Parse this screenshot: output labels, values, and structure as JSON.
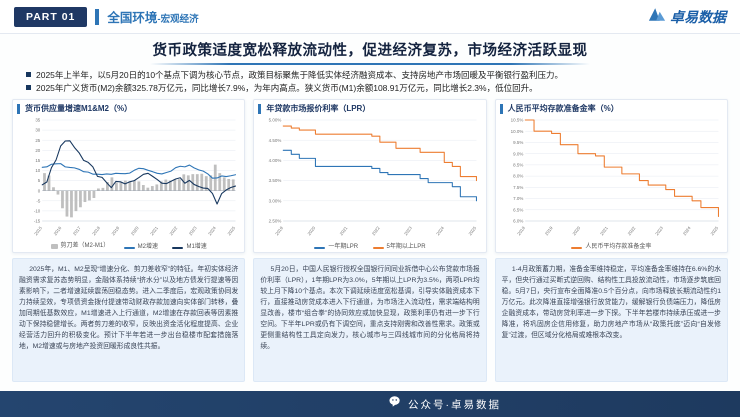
{
  "header": {
    "part_label": "PART 01",
    "section_title": "全国环境",
    "section_subtitle": "-宏观经济",
    "logo_text": "卓易数据"
  },
  "title": "货币政策适度宽松释放流动性，促进经济复苏，市场经济活跃显现",
  "bullets": [
    "2025年上半年，以5月20日的10个基点下调为核心节点，政策目标聚焦于降低实体经济融资成本、支持房地产市场回暖及平衡银行盈利压力。",
    "2025年广义货币(M2)余额325.78万亿元，同比增长7.9%，为年内高点。狭义货币(M1)余额108.91万亿元，同比增长2.3%，低位回升。"
  ],
  "chart_data": [
    {
      "type": "combo-bar-line",
      "title": "货币供应量增速M1&M2（%）",
      "ylim": [
        -15,
        35
      ],
      "ytick": 5,
      "ydecimals": 0,
      "ysuffix": "",
      "xlabels": [
        "2015",
        "2016",
        "2017",
        "2018",
        "2019",
        "2020",
        "2021",
        "2022",
        "2023",
        "2024",
        "2025"
      ],
      "bars": {
        "name": "剪刀差（M2-M1）",
        "color": "#bfbfbf",
        "values": [
          8.7,
          7.5,
          1.7,
          -1.9,
          -8.7,
          -12.8,
          -13.2,
          -10.1,
          -8.2,
          -5.6,
          -4.8,
          -3.6,
          1.1,
          1.4,
          4.3,
          6.6,
          4.0,
          4.1,
          5.0,
          4.3,
          5.1,
          4.6,
          2.8,
          1.5,
          2.3,
          3.1,
          4.6,
          5.5,
          5.0,
          5.6,
          5.7,
          8.1,
          7.6,
          8.2,
          8.2,
          8.4,
          7.2,
          7.6,
          12.9,
          8.7,
          6.6,
          5.8,
          5.6
        ]
      },
      "series": [
        {
          "name": "M2增速",
          "color": "#2e75b6",
          "values": [
            11.6,
            11.8,
            13.1,
            13.3,
            13.4,
            11.8,
            11.5,
            11.3,
            10.6,
            9.4,
            9.2,
            8.2,
            8.2,
            8.0,
            8.3,
            8.1,
            8.6,
            8.5,
            8.4,
            8.7,
            10.1,
            11.1,
            10.9,
            10.1,
            9.4,
            8.6,
            8.3,
            9.0,
            9.7,
            11.4,
            12.1,
            11.8,
            12.7,
            11.3,
            10.3,
            9.7,
            8.3,
            6.2,
            6.3,
            7.3,
            7.0,
            7.4,
            7.9
          ]
        },
        {
          "name": "M1增速",
          "color": "#17375e",
          "values": [
            2.9,
            4.3,
            11.4,
            15.2,
            22.1,
            24.6,
            24.7,
            21.4,
            18.8,
            15.0,
            14.0,
            11.8,
            7.1,
            6.6,
            4.0,
            1.5,
            4.6,
            4.4,
            3.4,
            4.4,
            5.0,
            6.5,
            8.1,
            8.6,
            7.1,
            5.5,
            3.7,
            3.5,
            4.7,
            5.8,
            6.4,
            3.7,
            5.1,
            3.1,
            2.1,
            1.3,
            1.1,
            -1.4,
            -6.6,
            -1.4,
            0.4,
            1.6,
            2.3
          ]
        }
      ],
      "legend": [
        {
          "label": "剪刀差（M2-M1）",
          "color": "#bfbfbf",
          "marker": "box"
        },
        {
          "label": "M2增速",
          "color": "#2e75b6",
          "marker": "line"
        },
        {
          "label": "M1增速",
          "color": "#17375e",
          "marker": "line"
        }
      ]
    },
    {
      "type": "step-line",
      "title": "年贷款市场报价利率（LPR）",
      "ylim": [
        2.5,
        5.0
      ],
      "ytick": 0.5,
      "ydecimals": 2,
      "ysuffix": "%",
      "xlabels": [
        "2019",
        "2020",
        "2021",
        "2022",
        "2023",
        "2024",
        "2025"
      ],
      "series": [
        {
          "name": "一年期LPR",
          "color": "#2e75b6",
          "values": [
            4.25,
            4.15,
            4.05,
            4.05,
            3.85,
            3.85,
            3.85,
            3.85,
            3.85,
            3.85,
            3.85,
            3.8,
            3.7,
            3.65,
            3.65,
            3.65,
            3.65,
            3.55,
            3.45,
            3.45,
            3.45,
            3.35,
            3.1,
            3.1,
            3.0
          ]
        },
        {
          "name": "5年期以上LPR",
          "color": "#ed7d31",
          "values": [
            4.85,
            4.8,
            4.75,
            4.75,
            4.65,
            4.65,
            4.65,
            4.65,
            4.65,
            4.65,
            4.65,
            4.6,
            4.45,
            4.45,
            4.3,
            4.3,
            4.3,
            4.2,
            4.2,
            4.2,
            3.95,
            3.85,
            3.6,
            3.6,
            3.5
          ]
        }
      ],
      "legend": [
        {
          "label": "一年期LPR",
          "color": "#2e75b6",
          "marker": "line"
        },
        {
          "label": "5年期以上LPR",
          "color": "#ed7d31",
          "marker": "line"
        }
      ]
    },
    {
      "type": "step-line",
      "title": "人民币平均存款准备金率（%）",
      "ylim": [
        6.0,
        10.5
      ],
      "ytick": 0.5,
      "ydecimals": 1,
      "ysuffix": "%",
      "xlabels": [
        "2018",
        "2019",
        "2020",
        "2021",
        "2022",
        "2023",
        "2024",
        "2025"
      ],
      "series": [
        {
          "name": "人民币平均存款准备金率",
          "color": "#ed7d31",
          "values": [
            10.5,
            10.0,
            10.0,
            9.9,
            9.4,
            9.4,
            9.0,
            9.0,
            8.9,
            8.4,
            8.4,
            8.1,
            8.1,
            7.8,
            7.6,
            7.6,
            7.4,
            7.1,
            7.1,
            6.9,
            6.6,
            6.6,
            6.2
          ]
        }
      ],
      "legend": [
        {
          "label": "人民币平均存款准备金率",
          "color": "#ed7d31",
          "marker": "line"
        }
      ]
    }
  ],
  "text_blocks": [
    "2025年，M1、M2呈现“增速分化、剪刀差收窄”的特征。年初实体经济融资需求复苏态势明显，金融体系持续“挤水分”以及地方债发行提速等因素影响下，二者增速延续震荡回稳态势。进入二季度后，宏观政策协同发力持续显效，专项债资金拨付提速带动财政存款加速向实体部门转移，叠加同期低基数效应，M1增速进入上行通道，M2增速在存款回表等因素推动下保持稳健增长。两者剪刀差的收窄，反映出资金活化程度提高、企业经营活力回升的积极变化。预计下半年若进一步出台稳楼市配套措施落地，M2增速或与房地产投资回暖形成良性共振。",
    "5月20日，中国人民银行授权全国银行间同业拆借中心公布贷款市场报价利率（LPR），1年期LPR为3.0%，5年期以上LPR为3.5%，两项LPR均较上月下降10个基点。本次下调延续适度宽松基调，引导实体融资成本下行，直接推动房贷成本进入下行通道，为市场注入流动性，需求端结构明显改善，楼市“组合拳”的协同效应或加快显现，政策利率仍有进一步下行空间。下半年LPR或仍有下调空间，重点支持刚需和改善性需求。政策或更侧重结构性工具定向发力，核心城市与三四线城市间的分化格局将持续。",
    "1-4月政策蓄力期，准备金率维持稳定，平均准备金率维持在6.6%的水平，但央行通过买断式逆回购、结构性工具投放流动性，市场逐步筑底回稳。5月7日，央行宣布全面降准0.5个百分点，向市场释放长期流动性约1万亿元。此次降准直接增强银行放贷能力，缓解银行负债端压力，降低房企融资成本，带动房贷利率进一步下探。下半年若楼市持续承压或进一步降准，将巩固房企信用修复，助力房地产市场从“政策托底”迈向“自发修复”过渡，但区域分化格局或难根本改变。"
  ],
  "footer": {
    "label": "公众号·卓易数据"
  },
  "colors": {
    "accent": "#2e75b6",
    "navy": "#1f3864",
    "footer_bg": "#1e3a5f",
    "bar_gray": "#bfbfbf",
    "orange": "#ed7d31"
  }
}
